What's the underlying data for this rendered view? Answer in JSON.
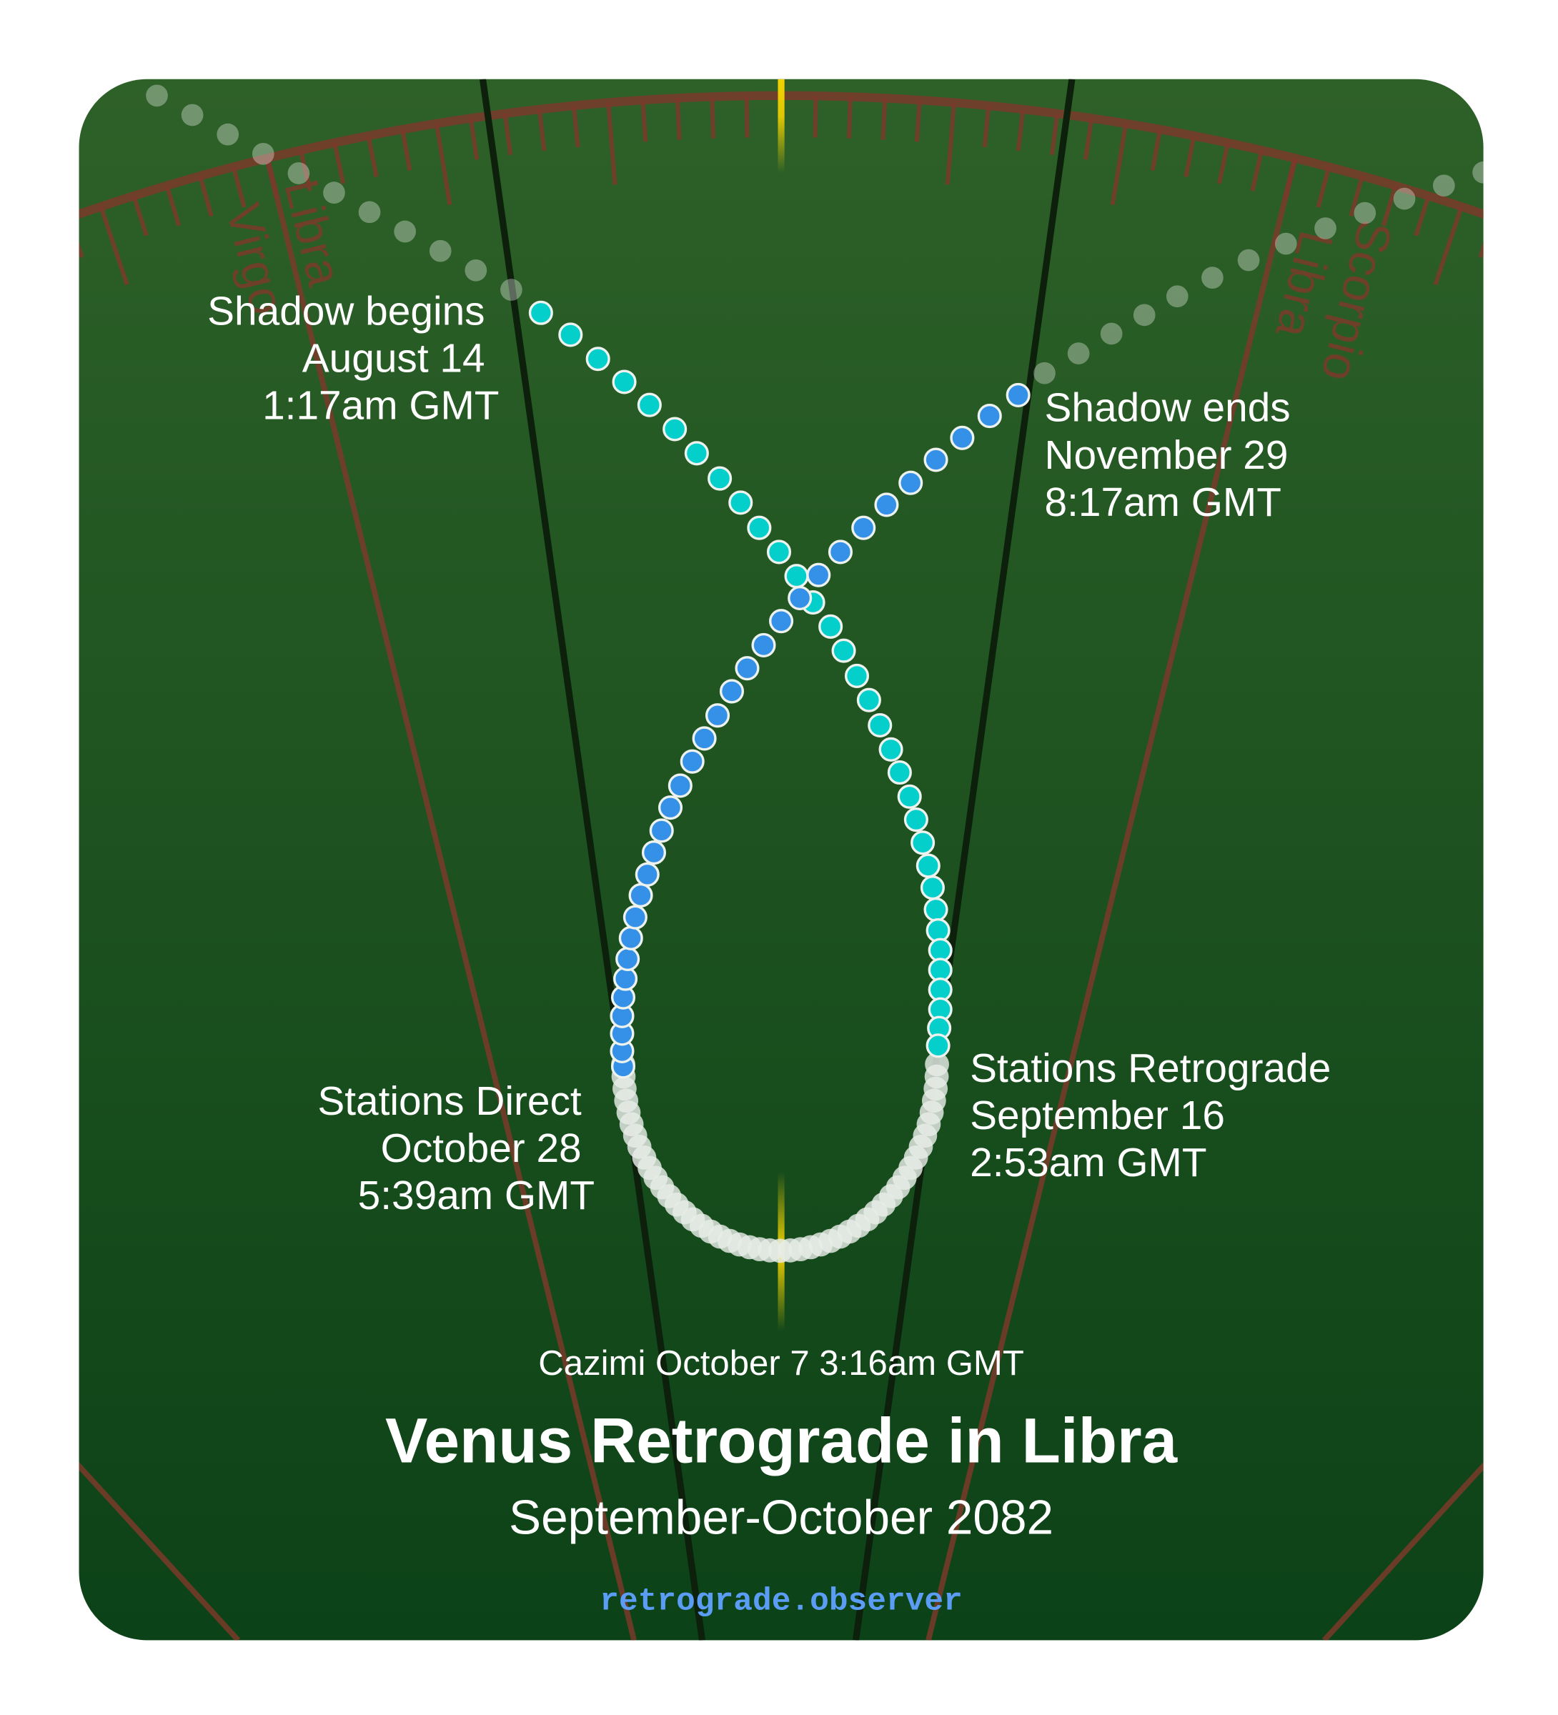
{
  "title": "Venus Retrograde in Libra",
  "subtitle": "September-October 2082",
  "website": "retrograde.observer",
  "cazimi": "Cazimi October 7 3:16am GMT",
  "events": {
    "shadow_begins": [
      "Shadow begins",
      "August 14",
      "1:17am GMT"
    ],
    "shadow_ends": [
      "Shadow ends",
      "November 29",
      "8:17am GMT"
    ],
    "stations_retrograde": [
      "Stations Retrograde",
      "September 16",
      "2:53am GMT"
    ],
    "stations_direct": [
      "Stations Direct",
      "October 28",
      "5:39am GMT"
    ]
  },
  "signs": {
    "left_outer": "Virgo",
    "left_inner": "Libra",
    "right_inner": "Libra",
    "right_outer": "Scorpio"
  },
  "colors": {
    "background_top": "#2e6128",
    "background_bottom": "#0c4217",
    "ecliptic": "#7a3a2a",
    "pre_shadow_dots": "#05cfcb",
    "post_shadow_dots": "#3591e8",
    "retrograde_dots": "#e8ede8",
    "sun_line": "#f2d200",
    "website": "#5b9cf5"
  }
}
